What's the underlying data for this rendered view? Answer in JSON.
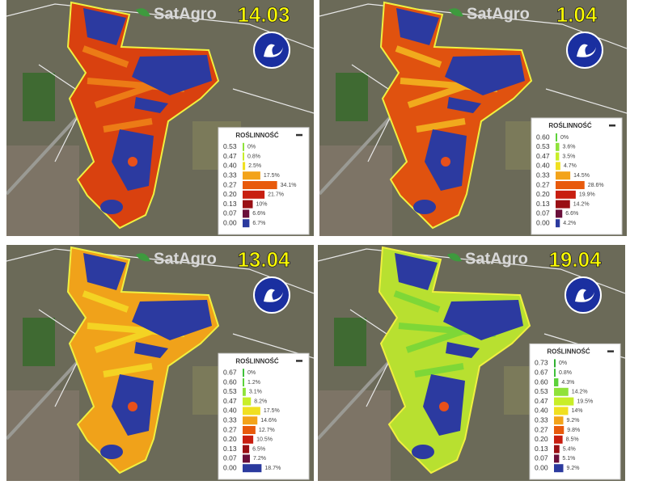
{
  "panels": [
    {
      "date": "14.03",
      "brand": "SatAgro",
      "legend": {
        "title": "ROŚLINNOŚĆ",
        "thresholds": [
          "0.53",
          "0.47",
          "0.40",
          "0.33",
          "0.27",
          "0.20",
          "0.13",
          "0.07",
          "0.00"
        ],
        "values": [
          0,
          0.8,
          2.5,
          17.5,
          34.1,
          21.7,
          10,
          6.6,
          6.7
        ],
        "value_labels": [
          "0%",
          "0.8%",
          "2.5%",
          "17.5%",
          "34.1%",
          "21.7%",
          "10%",
          "6.6%",
          "6.7%"
        ]
      }
    },
    {
      "date": "1.04",
      "brand": "SatAgro",
      "legend": {
        "title": "ROŚLINNOŚĆ",
        "thresholds": [
          "0.60",
          "0.53",
          "0.47",
          "0.40",
          "0.33",
          "0.27",
          "0.20",
          "0.13",
          "0.07",
          "0.00"
        ],
        "values": [
          0,
          3.6,
          3.5,
          4.7,
          14.5,
          28.6,
          19.9,
          14.2,
          6.6,
          4.2
        ],
        "value_labels": [
          "0%",
          "3.6%",
          "3.5%",
          "4.7%",
          "14.5%",
          "28.6%",
          "19.9%",
          "14.2%",
          "6.6%",
          "4.2%"
        ]
      }
    },
    {
      "date": "13.04",
      "brand": "SatAgro",
      "legend": {
        "title": "ROŚLINNOŚĆ",
        "thresholds": [
          "0.67",
          "0.60",
          "0.53",
          "0.47",
          "0.40",
          "0.33",
          "0.27",
          "0.20",
          "0.13",
          "0.07",
          "0.00"
        ],
        "values": [
          0,
          1.2,
          3.1,
          8.2,
          17.5,
          14.6,
          12.7,
          10.5,
          6.5,
          7.2,
          18.7
        ],
        "value_labels": [
          "0%",
          "1.2%",
          "3.1%",
          "8.2%",
          "17.5%",
          "14.6%",
          "12.7%",
          "10.5%",
          "6.5%",
          "7.2%",
          "18.7%"
        ]
      }
    },
    {
      "date": "19.04",
      "brand": "SatAgro",
      "legend": {
        "title": "ROŚLINNOŚĆ",
        "thresholds": [
          "0.73",
          "0.67",
          "0.60",
          "0.53",
          "0.47",
          "0.40",
          "0.33",
          "0.27",
          "0.20",
          "0.13",
          "0.07",
          "0.00"
        ],
        "values": [
          0,
          0.8,
          4.3,
          14.2,
          19.5,
          14,
          9.2,
          9.8,
          8.5,
          5.4,
          5.1,
          9.2
        ],
        "value_labels": [
          "0%",
          "0.8%",
          "4.3%",
          "14.2%",
          "19.5%",
          "14%",
          "9.2%",
          "9.8%",
          "8.5%",
          "5.4%",
          "5.1%",
          "9.2%"
        ]
      }
    }
  ]
}
